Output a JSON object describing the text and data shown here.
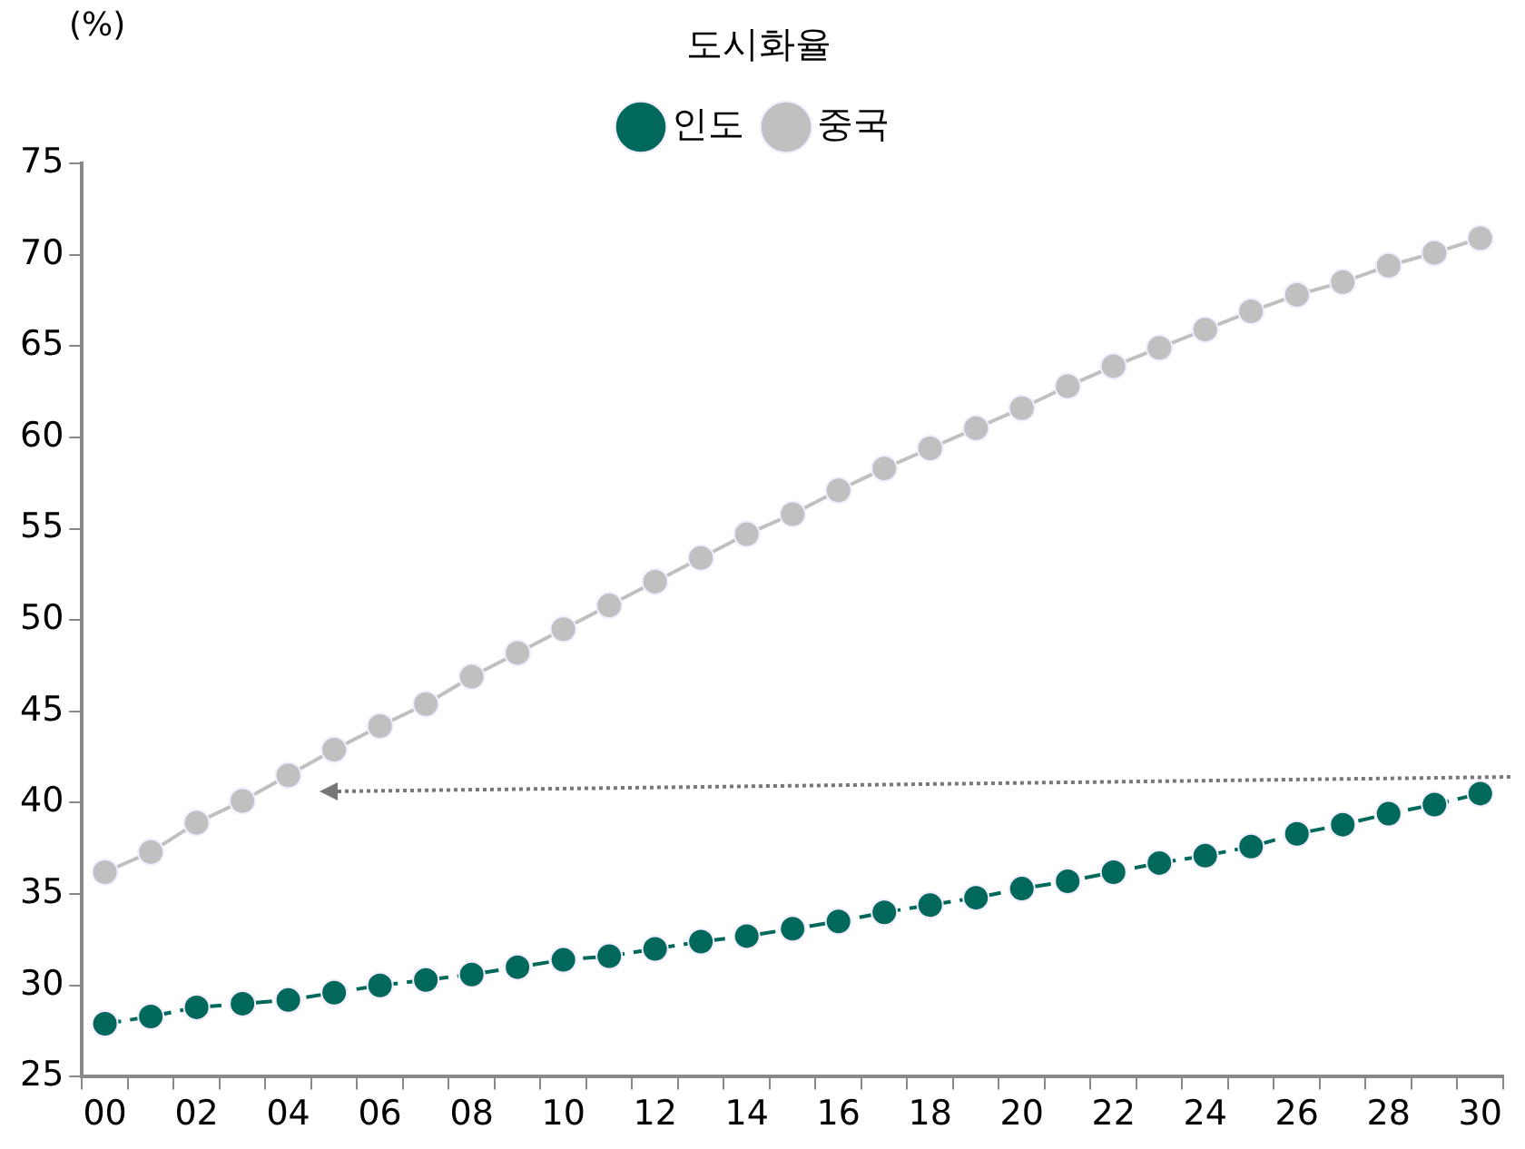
{
  "chart_data": {
    "type": "line",
    "title": "도시화율",
    "ylabel": "(%)",
    "categories": [
      "00",
      null,
      "02",
      null,
      "04",
      null,
      "06",
      null,
      "08",
      null,
      "10",
      null,
      "12",
      null,
      "14",
      null,
      "16",
      null,
      "18",
      null,
      "20",
      null,
      "22",
      null,
      "24",
      null,
      "26",
      null,
      "28",
      null,
      "30"
    ],
    "series": [
      {
        "name": "인도",
        "color": "#00695c",
        "line_style": "dashed",
        "values": [
          27.9,
          28.3,
          28.8,
          29.0,
          29.2,
          29.6,
          30.0,
          30.3,
          30.6,
          31.0,
          31.4,
          31.6,
          32.0,
          32.4,
          32.7,
          33.1,
          33.5,
          34.0,
          34.4,
          34.8,
          35.3,
          35.7,
          36.2,
          36.7,
          37.1,
          37.6,
          38.3,
          38.8,
          39.4,
          39.9,
          40.5
        ]
      },
      {
        "name": "중국",
        "color": "#c0c0c0",
        "line_style": "solid",
        "values": [
          36.2,
          37.3,
          38.9,
          40.1,
          41.5,
          42.9,
          44.2,
          45.4,
          46.9,
          48.2,
          49.5,
          50.8,
          52.1,
          53.4,
          54.7,
          55.8,
          57.1,
          58.3,
          59.4,
          60.5,
          61.6,
          62.8,
          63.9,
          64.9,
          65.9,
          66.9,
          67.8,
          68.5,
          69.4,
          70.1,
          70.9
        ]
      }
    ],
    "ylim": [
      25,
      75
    ],
    "yticks": [
      25,
      30,
      35,
      40,
      45,
      50,
      55,
      60,
      65,
      70,
      75
    ],
    "grid": false,
    "legend": "top",
    "marker": "circle"
  }
}
